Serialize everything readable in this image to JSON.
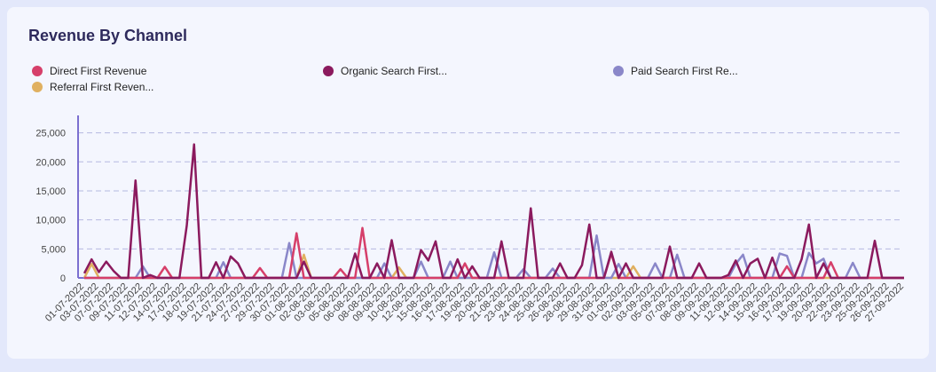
{
  "chart_data": {
    "type": "line",
    "title": "Revenue By Channel",
    "categories": [
      "01-07-2022",
      null,
      "03-07-2022",
      null,
      "07-07-2022",
      null,
      "09-07-2022",
      null,
      "11-07-2022",
      null,
      "12-07-2022",
      null,
      "14-07-2022",
      null,
      "17-07-2022",
      null,
      "18-07-2022",
      null,
      "19-07-2022",
      null,
      "21-07-2022",
      null,
      "24-07-2022",
      null,
      "27-07-2022",
      null,
      "29-07-2022",
      null,
      "30-07-2022",
      null,
      "01-08-2022",
      null,
      "02-08-2022",
      null,
      "03-08-2022",
      null,
      "05-08-2022",
      null,
      "06-08-2022",
      null,
      "08-08-2022",
      null,
      "09-08-2022",
      null,
      "10-08-2022",
      null,
      "12-08-2022",
      null,
      "15-08-2022",
      null,
      "16-08-2022",
      null,
      "17-08-2022",
      null,
      "19-08-2022",
      null,
      "20-08-2022",
      null,
      "21-08-2022",
      null,
      "23-08-2022",
      null,
      "24-08-2022",
      null,
      "25-08-2022",
      null,
      "26-08-2022",
      null,
      "28-08-2022",
      null,
      "29-08-2022",
      null,
      "31-08-2022",
      null,
      "01-09-2022",
      null,
      "02-09-2022",
      null,
      "03-09-2022",
      null,
      "05-09-2022",
      null,
      "07-09-2022",
      null,
      "08-09-2022",
      null,
      "09-09-2022",
      null,
      "11-09-2022",
      null,
      "12-09-2022",
      null,
      "14-09-2022",
      null,
      "15-09-2022",
      null,
      "16-09-2022",
      null,
      "17-09-2022",
      null,
      "19-09-2022",
      null,
      "20-09-2022",
      null,
      "22-09-2022",
      null,
      "23-09-2022",
      null,
      "25-09-2022",
      null,
      "26-09-2022",
      null,
      "27-09-2022"
    ],
    "series": [
      {
        "name": "Direct First Revenue",
        "color": "#d63f6a",
        "values": [
          0,
          0,
          0,
          0,
          0,
          0,
          0,
          0,
          0,
          0,
          0,
          1900,
          0,
          0,
          0,
          0,
          0,
          0,
          0,
          0,
          0,
          0,
          0,
          0,
          1700,
          0,
          0,
          0,
          0,
          7700,
          0,
          0,
          0,
          0,
          0,
          1500,
          0,
          0,
          8600,
          0,
          0,
          0,
          0,
          0,
          0,
          0,
          0,
          0,
          0,
          0,
          0,
          0,
          2500,
          0,
          0,
          0,
          0,
          0,
          0,
          0,
          0,
          0,
          0,
          0,
          0,
          0,
          0,
          0,
          0,
          0,
          0,
          0,
          4200,
          0,
          0,
          0,
          0,
          0,
          0,
          0,
          0,
          0,
          0,
          0,
          0,
          0,
          0,
          0,
          0,
          0,
          0,
          0,
          0,
          0,
          0,
          0,
          2000,
          0,
          0,
          0,
          0,
          0,
          2700,
          0,
          0,
          0,
          0,
          0,
          0,
          0,
          0,
          0,
          0
        ]
      },
      {
        "name": "Organic Search First...",
        "color": "#8b1a5e",
        "values": [
          800,
          3200,
          1000,
          2800,
          1200,
          0,
          0,
          16800,
          0,
          500,
          0,
          0,
          0,
          0,
          9000,
          23000,
          0,
          0,
          2700,
          0,
          3700,
          2500,
          0,
          0,
          0,
          0,
          0,
          0,
          0,
          0,
          2800,
          0,
          0,
          0,
          0,
          0,
          0,
          4200,
          0,
          0,
          2500,
          0,
          6500,
          0,
          0,
          0,
          4800,
          3000,
          6300,
          0,
          0,
          3200,
          0,
          2000,
          0,
          0,
          0,
          6300,
          0,
          0,
          0,
          12000,
          0,
          0,
          0,
          2500,
          0,
          0,
          2200,
          9200,
          0,
          0,
          4500,
          0,
          2500,
          0,
          0,
          0,
          0,
          0,
          5400,
          0,
          0,
          0,
          2500,
          0,
          0,
          0,
          500,
          3000,
          0,
          2500,
          3300,
          0,
          3500,
          0,
          0,
          0,
          3200,
          9200,
          0,
          2500,
          0,
          0,
          0,
          0,
          0,
          0,
          6400,
          0,
          0,
          0,
          0
        ]
      },
      {
        "name": "Paid Search First Re...",
        "color": "#8a87c9",
        "values": [
          0,
          0,
          0,
          0,
          0,
          0,
          0,
          0,
          2000,
          0,
          0,
          0,
          0,
          0,
          0,
          0,
          0,
          0,
          0,
          2700,
          0,
          0,
          0,
          0,
          0,
          0,
          0,
          0,
          6000,
          0,
          0,
          0,
          0,
          0,
          0,
          0,
          0,
          0,
          0,
          0,
          0,
          2500,
          0,
          0,
          0,
          0,
          2800,
          0,
          0,
          0,
          2800,
          0,
          0,
          0,
          0,
          0,
          4400,
          0,
          0,
          0,
          1500,
          0,
          0,
          0,
          1600,
          0,
          0,
          0,
          0,
          0,
          7300,
          0,
          0,
          2400,
          0,
          0,
          0,
          0,
          2500,
          0,
          0,
          4000,
          0,
          0,
          0,
          0,
          0,
          0,
          0,
          2400,
          4000,
          0,
          0,
          0,
          0,
          4200,
          3800,
          0,
          0,
          4300,
          2500,
          3300,
          0,
          0,
          0,
          2600,
          0,
          0,
          0,
          0,
          0,
          0,
          0
        ]
      },
      {
        "name": "Referral First Reven...",
        "color": "#e0b060",
        "values": [
          0,
          2400,
          0,
          0,
          0,
          0,
          0,
          0,
          0,
          0,
          0,
          0,
          0,
          0,
          0,
          0,
          0,
          0,
          0,
          0,
          0,
          0,
          0,
          0,
          0,
          0,
          0,
          0,
          0,
          0,
          4000,
          0,
          0,
          0,
          0,
          0,
          0,
          0,
          0,
          0,
          0,
          0,
          0,
          1800,
          0,
          0,
          0,
          0,
          0,
          0,
          0,
          0,
          0,
          0,
          0,
          0,
          0,
          0,
          0,
          0,
          0,
          0,
          0,
          0,
          0,
          0,
          0,
          0,
          0,
          0,
          0,
          0,
          0,
          0,
          0,
          2000,
          0,
          0,
          0,
          0,
          0,
          0,
          0,
          0,
          0,
          0,
          0,
          0,
          0,
          0,
          0,
          0,
          0,
          0,
          0,
          0,
          0,
          0,
          0,
          0,
          0,
          0,
          0,
          0,
          0,
          0,
          0,
          0,
          0,
          0,
          0,
          0,
          0
        ]
      }
    ],
    "ylim": [
      0,
      28000
    ],
    "yticks": [
      0,
      {
        "value": 5000,
        "label": "5,000"
      },
      {
        "value": 10000,
        "label": "10,000"
      },
      {
        "value": 15000,
        "label": "15,000"
      },
      {
        "value": 20000,
        "label": "20,000"
      },
      {
        "value": 25000,
        "label": "25,000"
      }
    ],
    "grid": true
  }
}
